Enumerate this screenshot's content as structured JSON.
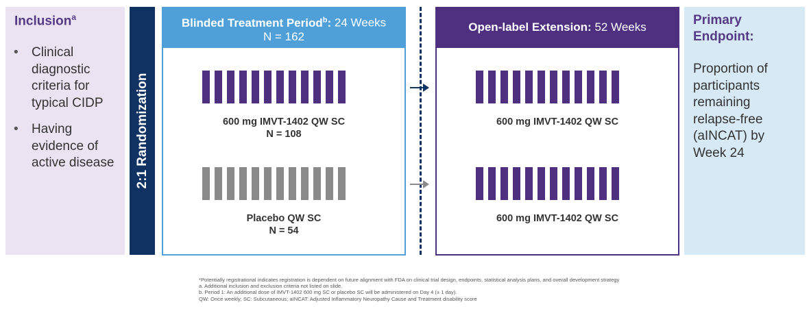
{
  "inclusion": {
    "title": "Inclusion",
    "title_sup": "a",
    "items": [
      "Clinical diagnostic criteria for typical CIDP",
      "Having evidence of active disease"
    ]
  },
  "randomization": {
    "label": "2:1 Randomization"
  },
  "blinded": {
    "title_bold": "Blinded Treatment Period",
    "title_sup": "b",
    "title_colon": ":",
    "duration": " 24 Weeks",
    "n": "N = 162",
    "arms": [
      {
        "label": "600 mg IMVT-1402 QW SC",
        "n": "N = 108",
        "color": "#4f2f80"
      },
      {
        "label": "Placebo QW SC",
        "n": "N = 54",
        "color": "#8a8a8a"
      }
    ]
  },
  "open_label": {
    "title_bold": "Open-label Extension:",
    "duration": " 52 Weeks",
    "arms": [
      {
        "label": "600 mg IMVT-1402 QW SC"
      },
      {
        "label": "600 mg IMVT-1402 QW SC"
      }
    ]
  },
  "endpoint": {
    "title": "Primary Endpoint:",
    "body": "Proportion of participants remaining relapse-free (aINCAT) by Week 24"
  },
  "footnotes": [
    "*Potentially registrational indicates registration is dependent on future alignment with FDA on clinical trial design, endpoints, statistical analysis plans, and overall development strategy",
    "a. Additional inclusion and exclusion criteria not listed on slide.",
    "b. Period 1: An additional dose of IMVT-1402 600 mg SC or placebo SC will be administered on Day 4 (± 1 day).",
    "QW: Once weekly; SC: Subcutaneous; aINCAT: Adjusted Inflammatory Neuropathy Cause and Treatment disability score"
  ],
  "colors": {
    "purple": "#4f2f80",
    "blue": "#4f9fd9",
    "navy": "#0f3262",
    "gray": "#8a8a8a"
  }
}
